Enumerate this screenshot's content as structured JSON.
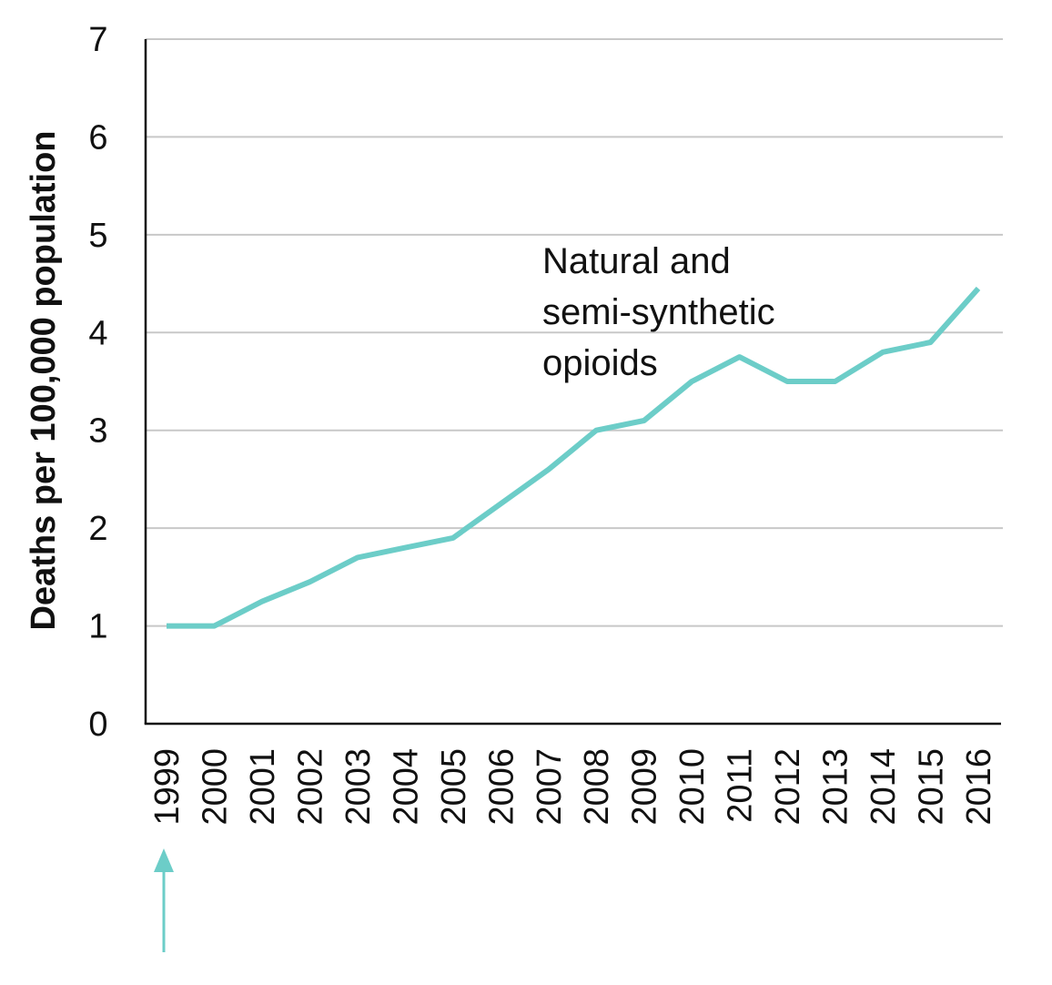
{
  "chart_data": {
    "type": "line",
    "title": "",
    "xlabel": "",
    "ylabel": "Deaths per 100,000 population",
    "ylim": [
      0,
      7
    ],
    "yticks": [
      "0",
      "1",
      "2",
      "3",
      "4",
      "5",
      "6",
      "7"
    ],
    "categories": [
      "1999",
      "2000",
      "2001",
      "2002",
      "2003",
      "2004",
      "2005",
      "2006",
      "2007",
      "2008",
      "2009",
      "2010",
      "2011",
      "2012",
      "2013",
      "2014",
      "2015",
      "2016"
    ],
    "series": [
      {
        "values": [
          1.0,
          1.0,
          1.25,
          1.45,
          1.7,
          1.8,
          1.9,
          2.25,
          2.6,
          3.0,
          3.1,
          3.5,
          3.75,
          3.5,
          3.5,
          3.8,
          3.9,
          4.45
        ],
        "color": "#6ccdc8"
      }
    ],
    "annotation": {
      "lines": [
        "Natural and",
        "semi-synthetic",
        "opioids"
      ]
    },
    "marker": {
      "type": "arrow",
      "category": "1999",
      "color": "#6ccdc8"
    },
    "grid": true,
    "gridColor": "#c8c8c8"
  }
}
